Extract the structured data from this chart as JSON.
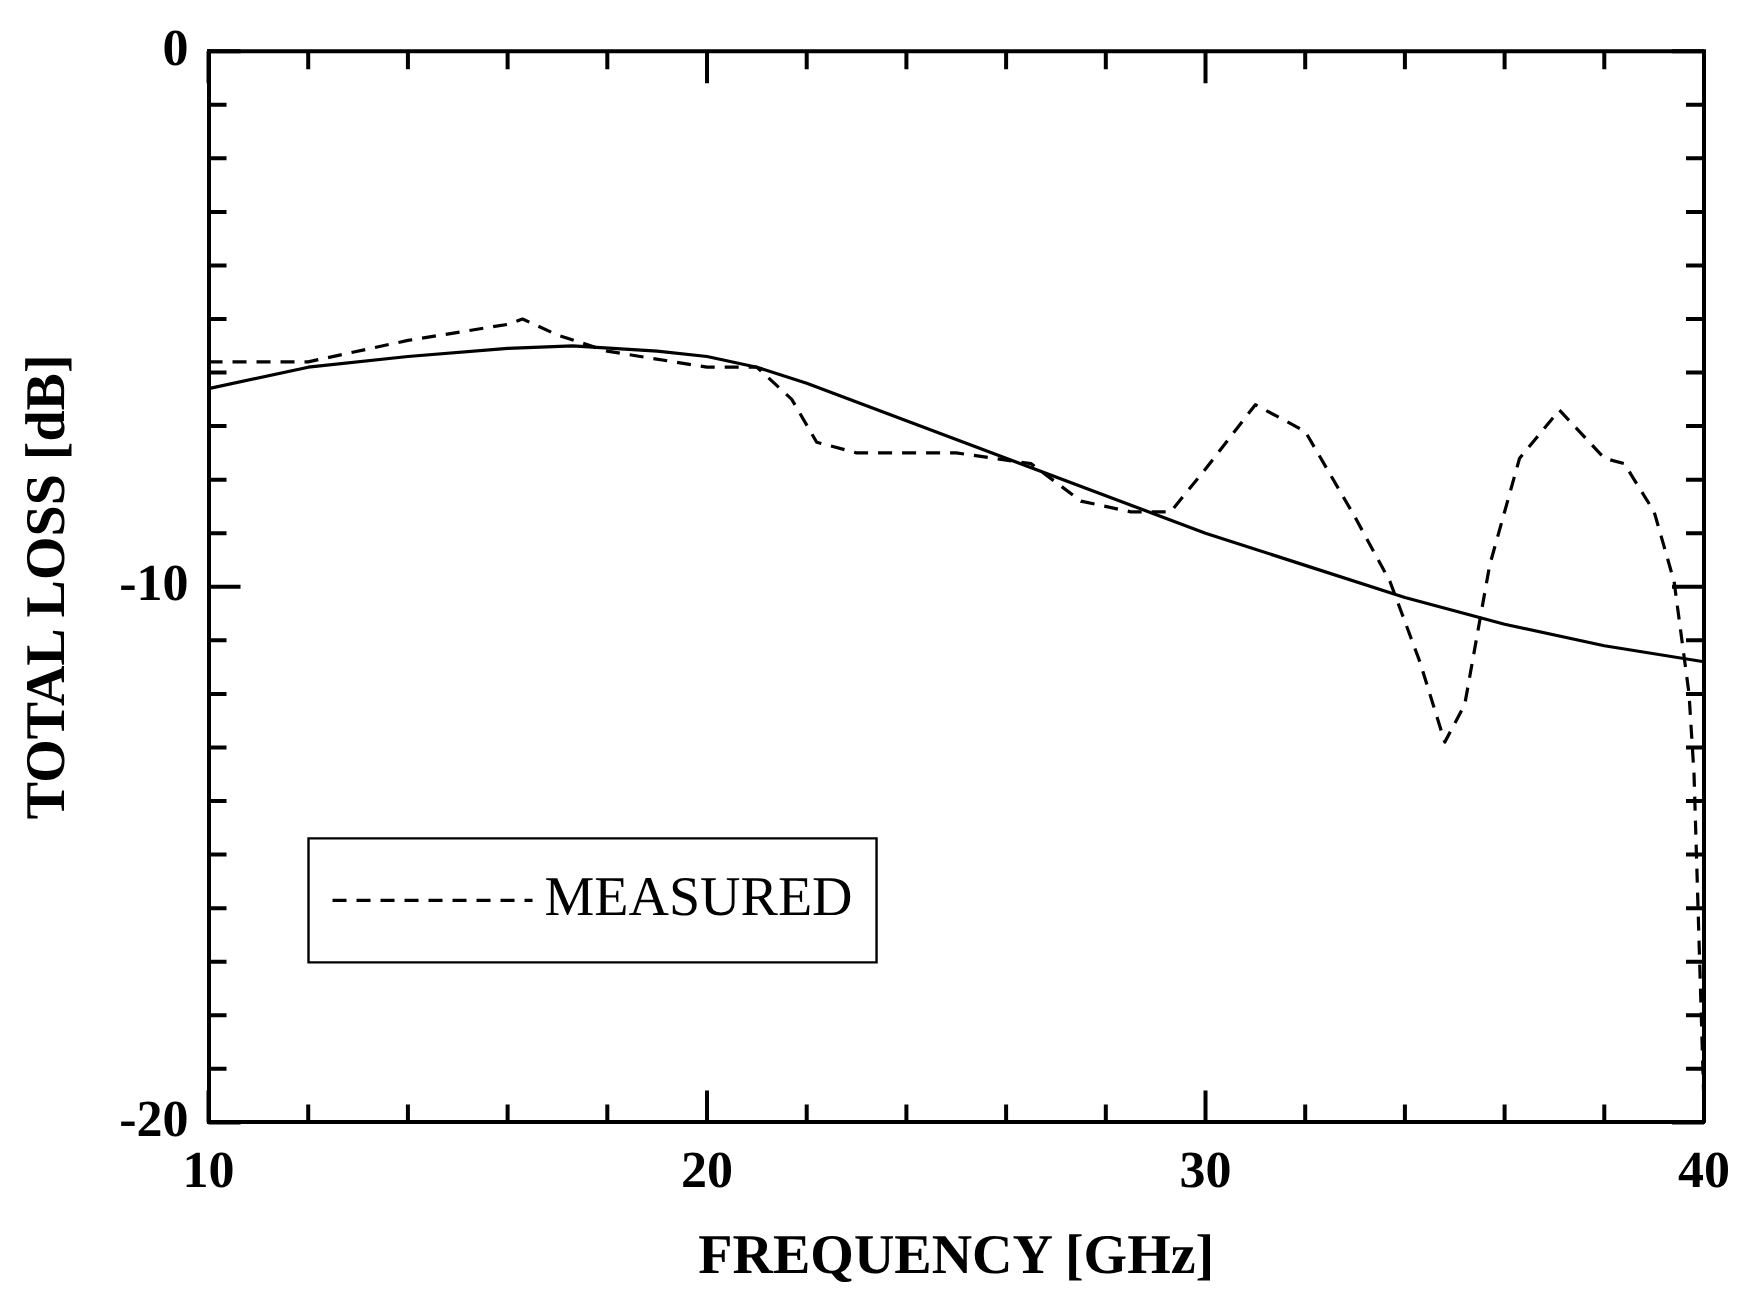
{
  "chart_data": {
    "type": "line",
    "xlabel": "FREQUENCY [GHz]",
    "ylabel": "TOTAL LOSS [dB]",
    "xlim": [
      10,
      40
    ],
    "ylim": [
      -20,
      0
    ],
    "xticks": [
      10,
      {
        "value": 12,
        "label": null
      },
      {
        "value": 14,
        "label": null
      },
      {
        "value": 16,
        "label": null
      },
      {
        "value": 18,
        "label": null
      },
      20,
      {
        "value": 22,
        "label": null
      },
      {
        "value": 24,
        "label": null
      },
      {
        "value": 26,
        "label": null
      },
      {
        "value": 28,
        "label": null
      },
      30,
      {
        "value": 32,
        "label": null
      },
      {
        "value": 34,
        "label": null
      },
      {
        "value": 36,
        "label": null
      },
      {
        "value": 38,
        "label": null
      },
      40
    ],
    "yticks": [
      -20,
      {
        "value": -19,
        "label": null
      },
      {
        "value": -18,
        "label": null
      },
      {
        "value": -17,
        "label": null
      },
      {
        "value": -16,
        "label": null
      },
      {
        "value": -15,
        "label": null
      },
      {
        "value": -14,
        "label": null
      },
      {
        "value": -13,
        "label": null
      },
      {
        "value": -12,
        "label": null
      },
      {
        "value": -11,
        "label": null
      },
      -10,
      {
        "value": -9,
        "label": null
      },
      {
        "value": -8,
        "label": null
      },
      {
        "value": -7,
        "label": null
      },
      {
        "value": -6,
        "label": null
      },
      {
        "value": -5,
        "label": null
      },
      {
        "value": -4,
        "label": null
      },
      {
        "value": -3,
        "label": null
      },
      {
        "value": -2,
        "label": null
      },
      {
        "value": -1,
        "label": null
      },
      0
    ],
    "grid": false,
    "legend": "bottom left",
    "marker": "none",
    "series": [
      {
        "name": "MEASURED",
        "color": "#000000",
        "line_style": "dashed",
        "x": [
          10,
          12,
          14,
          16,
          16.3,
          17,
          18,
          20,
          21,
          21.7,
          22.2,
          23,
          25,
          26.5,
          27.5,
          28.5,
          29.3,
          30,
          31,
          32,
          33,
          33.7,
          34.3,
          34.8,
          35.2,
          35.7,
          36.3,
          37.1,
          38,
          38.4,
          39,
          39.4,
          39.7,
          39.8,
          40
        ],
        "values": [
          -5.8,
          -5.8,
          -5.4,
          -5.1,
          -5.0,
          -5.3,
          -5.6,
          -5.9,
          -5.9,
          -6.5,
          -7.3,
          -7.5,
          -7.5,
          -7.7,
          -8.4,
          -8.6,
          -8.6,
          -7.8,
          -6.6,
          -7.1,
          -8.7,
          -9.9,
          -11.4,
          -12.9,
          -12.2,
          -9.6,
          -7.6,
          -6.7,
          -7.6,
          -7.7,
          -8.6,
          -9.9,
          -12.0,
          -13.5,
          -19.7
        ]
      },
      {
        "color": "#000000",
        "line_style": "solid",
        "x": [
          10,
          12,
          14,
          16,
          17.3,
          19,
          20,
          21,
          22,
          24,
          26,
          28,
          30,
          32,
          34,
          36,
          38,
          40
        ],
        "values": [
          -6.3,
          -5.9,
          -5.7,
          -5.55,
          -5.5,
          -5.6,
          -5.7,
          -5.9,
          -6.2,
          -6.9,
          -7.6,
          -8.3,
          -9.0,
          -9.6,
          -10.2,
          -10.7,
          -11.1,
          -11.4
        ]
      }
    ]
  }
}
